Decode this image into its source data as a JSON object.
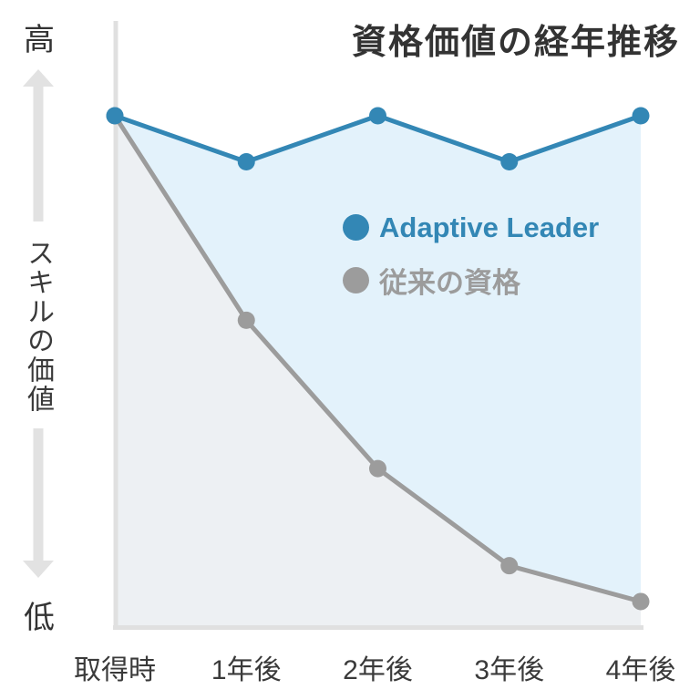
{
  "title": "資格価値の経年推移",
  "y_axis": {
    "high_label": "高",
    "low_label": "低",
    "axis_title": "スキルの価値"
  },
  "legend": [
    {
      "name": "Adaptive Leader",
      "color": "#3387b5"
    },
    {
      "name": "従来の資格",
      "color": "#9c9c9c"
    }
  ],
  "colors": {
    "title_text": "#333333",
    "axis_text": "#3a3a3a",
    "axis_line": "#e0e0e0",
    "arrow": "#e2e2e2",
    "blue_line": "#3387b5",
    "blue_fill": "#e3f2fb",
    "gray_line": "#9c9c9c",
    "gray_fill": "#edf0f3"
  },
  "chart_data": {
    "type": "line",
    "title": "資格価値の経年推移",
    "ylabel": "スキルの価値",
    "xlabel": "",
    "categories": [
      "取得時",
      "1年後",
      "2年後",
      "3年後",
      "4年後"
    ],
    "series": [
      {
        "name": "Adaptive Leader",
        "color": "#3387b5",
        "fill": "#e3f2fb",
        "values": [
          100,
          91,
          100,
          91,
          100
        ]
      },
      {
        "name": "従来の資格",
        "color": "#9c9c9c",
        "fill": "#edf0f3",
        "values": [
          100,
          60,
          31,
          12,
          5
        ]
      }
    ],
    "ylim": [
      0,
      100
    ],
    "y_scale_labels": {
      "top": "高",
      "bottom": "低"
    },
    "grid": false,
    "legend_position": "center",
    "area_fill": true,
    "markers": "circle"
  }
}
